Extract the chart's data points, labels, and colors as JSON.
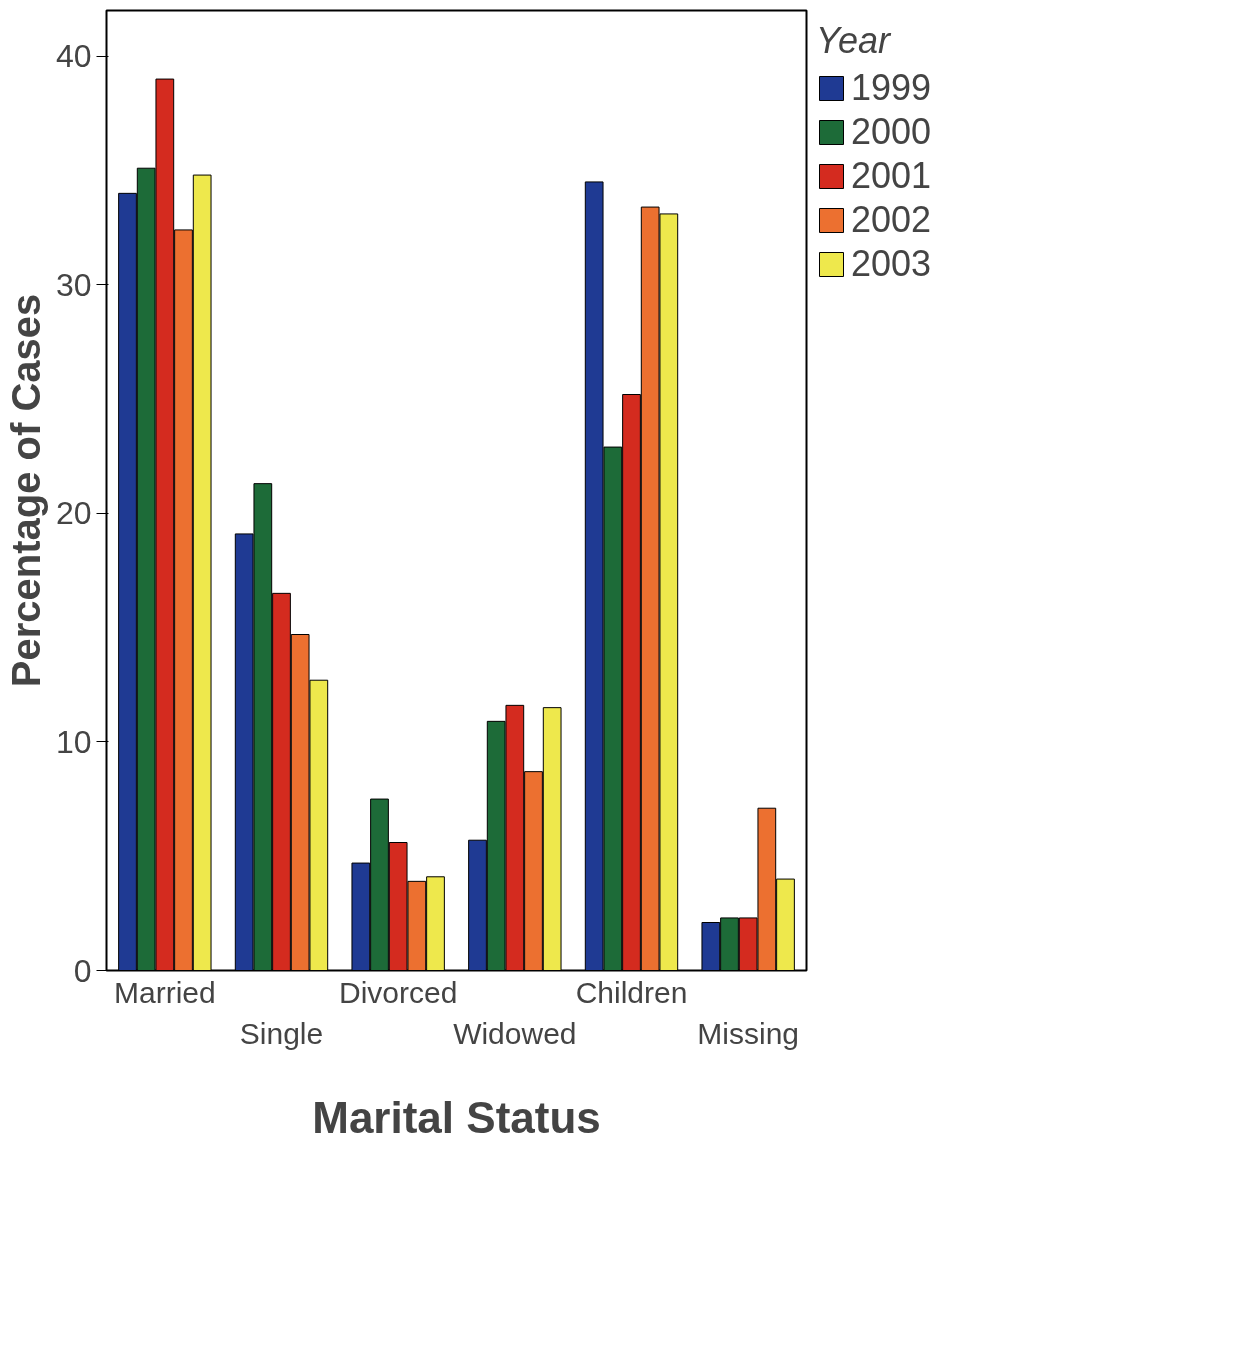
{
  "chart_data": {
    "type": "bar",
    "xlabel": "Marital Status",
    "ylabel": "Percentage of Cases",
    "legend_title": "Year",
    "categories": [
      "Married",
      "Single",
      "Divorced",
      "Widowed",
      "Children",
      "Missing"
    ],
    "series": [
      {
        "name": "1999",
        "color": "#1f3a93",
        "values": [
          34.0,
          19.1,
          4.7,
          5.7,
          34.5,
          2.1
        ]
      },
      {
        "name": "2000",
        "color": "#1d6b38",
        "values": [
          35.1,
          21.3,
          7.5,
          10.9,
          22.9,
          2.3
        ]
      },
      {
        "name": "2001",
        "color": "#d42b1f",
        "values": [
          39.0,
          16.5,
          5.6,
          11.6,
          25.2,
          2.3
        ]
      },
      {
        "name": "2002",
        "color": "#ec7030",
        "values": [
          32.4,
          14.7,
          3.9,
          8.7,
          33.4,
          7.1
        ]
      },
      {
        "name": "2003",
        "color": "#eee84c",
        "values": [
          34.8,
          12.7,
          4.1,
          11.5,
          33.1,
          4.0
        ]
      }
    ],
    "ylim": [
      0,
      42
    ],
    "yticks": [
      0,
      10,
      20,
      30,
      40
    ],
    "grid": false,
    "legend": "top right"
  }
}
